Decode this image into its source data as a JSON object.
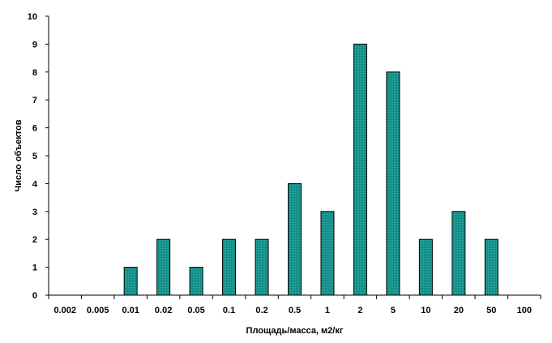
{
  "chart_data": {
    "type": "bar",
    "title": "",
    "xlabel": "Площадь/масса, м2/кг",
    "ylabel": "Число объектов",
    "categories": [
      "0.002",
      "0.005",
      "0.01",
      "0.02",
      "0.05",
      "0.1",
      "0.2",
      "0.5",
      "1",
      "2",
      "5",
      "10",
      "20",
      "50",
      "100"
    ],
    "values": [
      0,
      0,
      1,
      2,
      1,
      2,
      2,
      4,
      3,
      9,
      8,
      2,
      3,
      2,
      0
    ],
    "ylim": [
      0,
      10
    ],
    "yticks": [
      "0",
      "1",
      "2",
      "3",
      "4",
      "5",
      "6",
      "7",
      "8",
      "9",
      "10"
    ],
    "grid": false,
    "legend": "none",
    "bar_color": "#0f8c86",
    "bar_edge_color": "#000000"
  }
}
